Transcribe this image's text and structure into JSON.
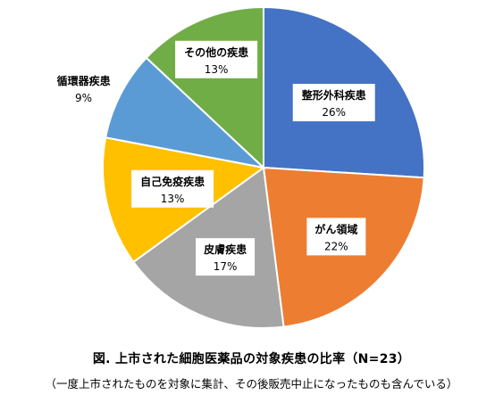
{
  "chart_data": {
    "type": "pie",
    "caption": "図.  上市された細胞医薬品の対象疾患の比率（N=23）",
    "note": "（一度上市されたものを対象に集計、その後販売中止になったものも含んでいる）",
    "slices": [
      {
        "label": "整形外科疾患",
        "pct_label": "26%",
        "value": 26,
        "color": "#4472C4"
      },
      {
        "label": "がん領域",
        "pct_label": "22%",
        "value": 22,
        "color": "#ED7D31"
      },
      {
        "label": "皮膚疾患",
        "pct_label": "17%",
        "value": 17,
        "color": "#A5A5A5"
      },
      {
        "label": "自己免疫疾患",
        "pct_label": "13%",
        "value": 13,
        "color": "#FFC000"
      },
      {
        "label": "循環器疾患",
        "pct_label": "9%",
        "value": 9,
        "color": "#5B9BD5"
      },
      {
        "label": "その他の疾患",
        "pct_label": "13%",
        "value": 13,
        "color": "#70AD47"
      }
    ]
  }
}
